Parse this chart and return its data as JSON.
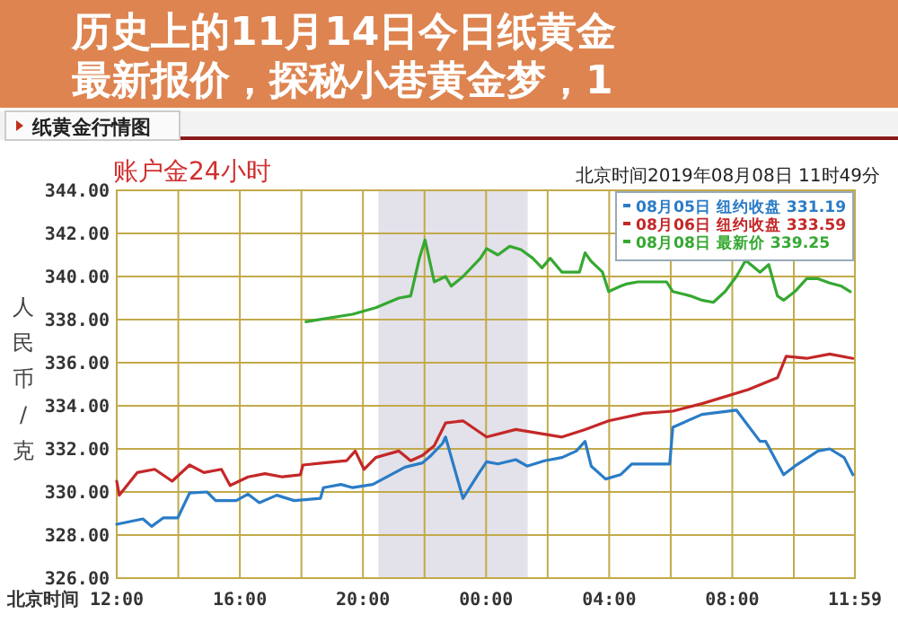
{
  "chart_data": {
    "type": "line",
    "title": "账户金24小时",
    "xlabel": "北京时间",
    "ylabel": "人民币/克",
    "annotations": [
      "纸黄金行情图",
      "北京时间2019年08月08日 11时49分",
      "历史上的11月14日今日纸黄金",
      "最新报价，探秘小巷黄金梦，1"
    ],
    "xlim": [
      "2019-08-07T12:00",
      "2019-08-08T11:59"
    ],
    "xticks": [
      {
        "value": "2019-08-07T12:00",
        "label": "12:00"
      },
      {
        "value": "2019-08-07T14:00",
        "label": null
      },
      {
        "value": "2019-08-07T16:00",
        "label": "16:00"
      },
      {
        "value": "2019-08-07T18:00",
        "label": null
      },
      {
        "value": "2019-08-07T20:00",
        "label": "20:00"
      },
      {
        "value": "2019-08-07T22:00",
        "label": null
      },
      {
        "value": "2019-08-08T00:00",
        "label": "00:00"
      },
      {
        "value": "2019-08-08T02:00",
        "label": null
      },
      {
        "value": "2019-08-08T04:00",
        "label": "04:00"
      },
      {
        "value": "2019-08-08T06:00",
        "label": null
      },
      {
        "value": "2019-08-08T08:00",
        "label": "08:00"
      },
      {
        "value": "2019-08-08T10:00",
        "label": null
      },
      {
        "value": "2019-08-08T11:59",
        "label": "11:59"
      }
    ],
    "ylim": [
      326,
      344
    ],
    "yticks": [
      {
        "value": 326,
        "label": "326.00"
      },
      {
        "value": 328,
        "label": "328.00"
      },
      {
        "value": 330,
        "label": "330.00"
      },
      {
        "value": 332,
        "label": "332.00"
      },
      {
        "value": 334,
        "label": "334.00"
      },
      {
        "value": 336,
        "label": "336.00"
      },
      {
        "value": 338,
        "label": "338.00"
      },
      {
        "value": 340,
        "label": "340.00"
      },
      {
        "value": 342,
        "label": "342.00"
      },
      {
        "value": 344,
        "label": "344.00"
      }
    ],
    "grid": true,
    "legend": "top right",
    "marker": "none",
    "line_style": "solid",
    "bands": [
      {
        "axis": "x",
        "from": "2019-08-07T20:30",
        "to": "2019-08-08T01:21",
        "color": "#e3e1e9"
      }
    ],
    "series": [
      {
        "name": "08月05日 纽约收盘 331.19",
        "color": "#2a7cc6",
        "x": [
          "2019-08-07T12:00",
          "2019-08-07T12:51",
          "2019-08-07T13:08",
          "2019-08-07T13:31",
          "2019-08-07T13:59",
          "2019-08-07T14:22",
          "2019-08-07T14:56",
          "2019-08-07T15:13",
          "2019-08-07T15:53",
          "2019-08-07T16:16",
          "2019-08-07T16:38",
          "2019-08-07T17:12",
          "2019-08-07T17:46",
          "2019-08-07T18:37",
          "2019-08-07T18:43",
          "2019-08-07T19:17",
          "2019-08-07T19:40",
          "2019-08-07T20:19",
          "2019-08-07T20:47",
          "2019-08-07T21:22",
          "2019-08-07T21:56",
          "2019-08-07T22:13",
          "2019-08-07T22:35",
          "2019-08-07T22:41",
          "2019-08-07T23:15",
          "2019-08-07T23:44",
          "2019-08-08T00:01",
          "2019-08-08T00:23",
          "2019-08-08T00:58",
          "2019-08-08T01:20",
          "2019-08-08T01:54",
          "2019-08-08T02:28",
          "2019-08-08T02:56",
          "2019-08-08T03:13",
          "2019-08-08T03:25",
          "2019-08-08T03:53",
          "2019-08-08T04:22",
          "2019-08-08T04:44",
          "2019-08-08T05:58",
          "2019-08-08T06:04",
          "2019-08-08T07:01",
          "2019-08-08T08:08",
          "2019-08-08T08:54",
          "2019-08-08T09:05",
          "2019-08-08T09:40",
          "2019-08-08T10:02",
          "2019-08-08T10:47",
          "2019-08-08T11:10",
          "2019-08-08T11:38",
          "2019-08-08T11:55"
        ],
        "values": [
          328.5,
          328.75,
          328.4,
          328.8,
          328.8,
          329.95,
          330.0,
          329.6,
          329.6,
          329.9,
          329.5,
          329.85,
          329.6,
          329.7,
          330.2,
          330.35,
          330.2,
          330.35,
          330.7,
          331.15,
          331.35,
          331.7,
          332.25,
          332.55,
          329.7,
          330.8,
          331.4,
          331.3,
          331.5,
          331.2,
          331.45,
          331.6,
          331.9,
          332.35,
          331.2,
          330.6,
          330.8,
          331.3,
          331.3,
          333.0,
          333.6,
          333.8,
          332.35,
          332.35,
          330.8,
          331.2,
          331.9,
          332.0,
          331.6,
          330.8
        ]
      },
      {
        "name": "08月06日 纽约收盘 333.59",
        "color": "#c42828",
        "x": [
          "2019-08-07T12:00",
          "2019-08-07T12:05",
          "2019-08-07T12:40",
          "2019-08-07T13:14",
          "2019-08-07T13:48",
          "2019-08-07T14:22",
          "2019-08-07T14:50",
          "2019-08-07T15:24",
          "2019-08-07T15:41",
          "2019-08-07T16:16",
          "2019-08-07T16:49",
          "2019-08-07T17:23",
          "2019-08-07T17:58",
          "2019-08-07T18:03",
          "2019-08-07T18:43",
          "2019-08-07T19:28",
          "2019-08-07T19:45",
          "2019-08-07T20:02",
          "2019-08-07T20:25",
          "2019-08-07T21:10",
          "2019-08-07T21:33",
          "2019-08-07T21:56",
          "2019-08-07T22:19",
          "2019-08-07T22:41",
          "2019-08-07T23:15",
          "2019-08-08T00:01",
          "2019-08-08T00:58",
          "2019-08-08T02:28",
          "2019-08-08T03:13",
          "2019-08-08T03:59",
          "2019-08-08T05:07",
          "2019-08-08T06:04",
          "2019-08-08T07:01",
          "2019-08-08T08:31",
          "2019-08-08T09:28",
          "2019-08-08T09:45",
          "2019-08-08T10:25",
          "2019-08-08T11:10",
          "2019-08-08T11:55"
        ],
        "values": [
          330.5,
          329.85,
          330.9,
          331.05,
          330.5,
          331.25,
          330.9,
          331.05,
          330.3,
          330.7,
          330.85,
          330.7,
          330.8,
          331.25,
          331.35,
          331.45,
          331.9,
          331.05,
          331.6,
          331.9,
          331.45,
          331.7,
          332.15,
          333.2,
          333.3,
          332.55,
          332.9,
          332.55,
          332.9,
          333.3,
          333.65,
          333.75,
          334.1,
          334.75,
          335.3,
          336.3,
          336.2,
          336.4,
          336.2
        ]
      },
      {
        "name": "08月08日 最新价 339.25",
        "color": "#36a832",
        "x": [
          "2019-08-07T18:09",
          "2019-08-07T19:40",
          "2019-08-07T20:25",
          "2019-08-07T21:10",
          "2019-08-07T21:33",
          "2019-08-07T21:50",
          "2019-08-07T22:01",
          "2019-08-07T22:19",
          "2019-08-07T22:41",
          "2019-08-07T22:52",
          "2019-08-07T23:15",
          "2019-08-07T23:49",
          "2019-08-08T00:01",
          "2019-08-08T00:23",
          "2019-08-08T00:46",
          "2019-08-08T01:08",
          "2019-08-08T01:31",
          "2019-08-08T01:49",
          "2019-08-08T02:05",
          "2019-08-08T02:28",
          "2019-08-08T03:02",
          "2019-08-08T03:13",
          "2019-08-08T03:25",
          "2019-08-08T03:47",
          "2019-08-08T03:59",
          "2019-08-08T04:22",
          "2019-08-08T04:33",
          "2019-08-08T04:56",
          "2019-08-08T05:52",
          "2019-08-08T06:04",
          "2019-08-08T06:38",
          "2019-08-08T07:01",
          "2019-08-08T07:23",
          "2019-08-08T07:46",
          "2019-08-08T08:08",
          "2019-08-08T08:26",
          "2019-08-08T08:54",
          "2019-08-08T09:11",
          "2019-08-08T09:28",
          "2019-08-08T09:40",
          "2019-08-08T10:02",
          "2019-08-08T10:25",
          "2019-08-08T10:47",
          "2019-08-08T11:10",
          "2019-08-08T11:33",
          "2019-08-08T11:50"
        ],
        "values": [
          337.9,
          338.25,
          338.55,
          339.0,
          339.1,
          340.85,
          341.7,
          339.75,
          340.0,
          339.55,
          340.0,
          340.85,
          341.3,
          341.0,
          341.4,
          341.25,
          340.85,
          340.4,
          340.85,
          340.2,
          340.2,
          341.1,
          340.7,
          340.2,
          339.3,
          339.55,
          339.65,
          339.75,
          339.75,
          339.3,
          339.1,
          338.9,
          338.8,
          339.3,
          340.0,
          340.75,
          340.2,
          340.55,
          339.1,
          338.9,
          339.3,
          339.9,
          339.9,
          339.7,
          339.55,
          339.3
        ]
      }
    ]
  }
}
